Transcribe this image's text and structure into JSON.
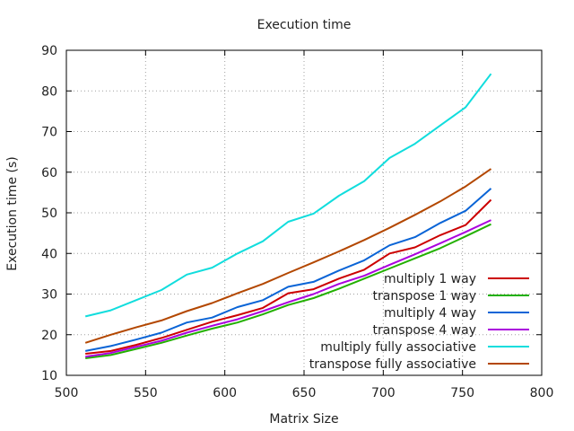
{
  "chart_data": {
    "type": "line",
    "title": "Execution time",
    "xlabel": "Matrix Size",
    "ylabel": "Execution time (s)",
    "xlim": [
      500,
      800
    ],
    "ylim": [
      10,
      90
    ],
    "xticks": [
      "500",
      "550",
      "600",
      "650",
      "700",
      "750",
      "800"
    ],
    "yticks": [
      "10",
      "20",
      "30",
      "40",
      "50",
      "60",
      "70",
      "80",
      "90"
    ],
    "grid": true,
    "legend_position": "bottom-right",
    "series": [
      {
        "name": "multiply 1 way",
        "color": "#cc0000",
        "x": [
          512,
          528,
          544,
          560,
          576,
          592,
          608,
          624,
          640,
          656,
          672,
          688,
          704,
          720,
          736,
          752,
          768
        ],
        "y": [
          15.3,
          16.0,
          17.5,
          19.2,
          21.2,
          23.2,
          24.8,
          26.6,
          30.2,
          31.2,
          33.8,
          36.0,
          40.0,
          41.5,
          44.5,
          47.0,
          53.2
        ]
      },
      {
        "name": "transpose 1 way",
        "color": "#22b000",
        "x": [
          512,
          528,
          544,
          560,
          576,
          592,
          608,
          624,
          640,
          656,
          672,
          688,
          704,
          720,
          736,
          752,
          768
        ],
        "y": [
          14.2,
          15.0,
          16.5,
          18.0,
          19.8,
          21.5,
          23.0,
          25.0,
          27.3,
          29.0,
          31.3,
          33.8,
          36.3,
          38.8,
          41.3,
          44.2,
          47.2
        ]
      },
      {
        "name": "multiply 4 way",
        "color": "#0a64d6",
        "x": [
          512,
          528,
          544,
          560,
          576,
          592,
          608,
          624,
          640,
          656,
          672,
          688,
          704,
          720,
          736,
          752,
          768
        ],
        "y": [
          16.0,
          17.2,
          18.8,
          20.5,
          23.0,
          24.2,
          26.8,
          28.5,
          31.8,
          33.0,
          35.8,
          38.3,
          42.0,
          44.0,
          47.5,
          50.5,
          56.0
        ]
      },
      {
        "name": "transpose 4 way",
        "color": "#aa00dd",
        "x": [
          512,
          528,
          544,
          560,
          576,
          592,
          608,
          624,
          640,
          656,
          672,
          688,
          704,
          720,
          736,
          752,
          768
        ],
        "y": [
          14.6,
          15.5,
          17.0,
          18.5,
          20.5,
          22.2,
          23.8,
          25.8,
          28.0,
          30.0,
          32.5,
          34.5,
          37.2,
          39.8,
          42.5,
          45.3,
          48.2
        ]
      },
      {
        "name": "multiply fully associative",
        "color": "#11dddd",
        "x": [
          512,
          528,
          544,
          560,
          576,
          592,
          608,
          624,
          640,
          656,
          672,
          688,
          704,
          720,
          736,
          752,
          768
        ],
        "y": [
          24.5,
          26.0,
          28.5,
          31.0,
          34.8,
          36.5,
          40.0,
          43.0,
          47.8,
          49.8,
          54.2,
          57.8,
          63.5,
          67.0,
          71.5,
          76.0,
          84.2
        ]
      },
      {
        "name": "transpose fully associative",
        "color": "#b34700",
        "x": [
          512,
          528,
          544,
          560,
          576,
          592,
          608,
          624,
          640,
          656,
          672,
          688,
          704,
          720,
          736,
          752,
          768
        ],
        "y": [
          18.0,
          20.0,
          21.8,
          23.5,
          25.8,
          27.8,
          30.2,
          32.5,
          35.2,
          37.8,
          40.5,
          43.3,
          46.3,
          49.5,
          52.8,
          56.5,
          60.8
        ]
      }
    ]
  }
}
